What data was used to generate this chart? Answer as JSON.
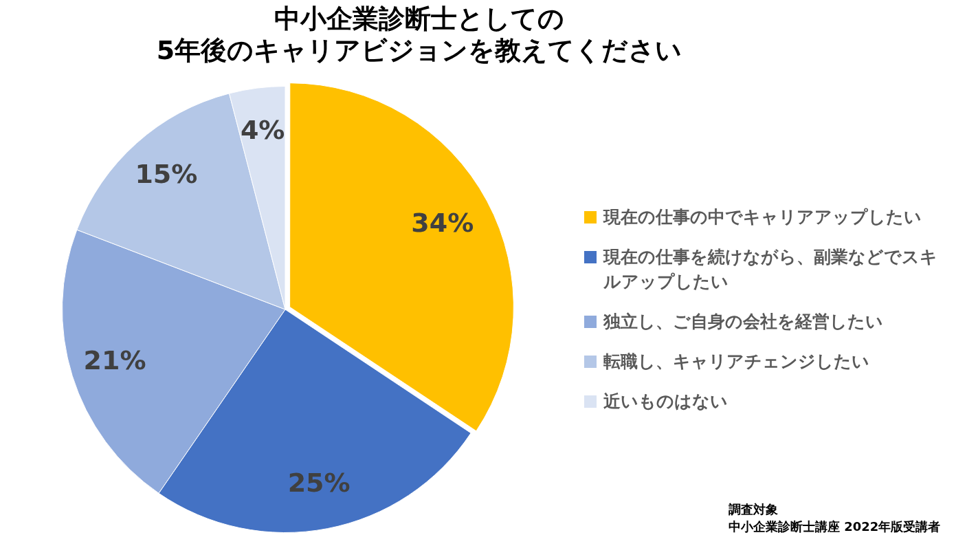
{
  "chart_data": {
    "type": "pie",
    "title": "中小企業診断士としての\n5年後のキャリアビジョンを教えてください",
    "categories": [
      "現在の仕事の中でキャリアアップしたい",
      "現在の仕事を続けながら、副業などでスキルアップしたい",
      "独立し、ご自身の会社を経営したい",
      "転職し、キャリアチェンジしたい",
      "近いものはない"
    ],
    "values": [
      34,
      25,
      21,
      15,
      4
    ],
    "colors": [
      "#ffc000",
      "#4472c4",
      "#8faadc",
      "#b4c7e7",
      "#dae3f3"
    ],
    "value_labels": [
      "34%",
      "25%",
      "21%",
      "15%",
      "4%"
    ],
    "legend": "right",
    "annotations": [
      "調査対象",
      "中小企業診断士講座 2022年版受講者"
    ]
  }
}
